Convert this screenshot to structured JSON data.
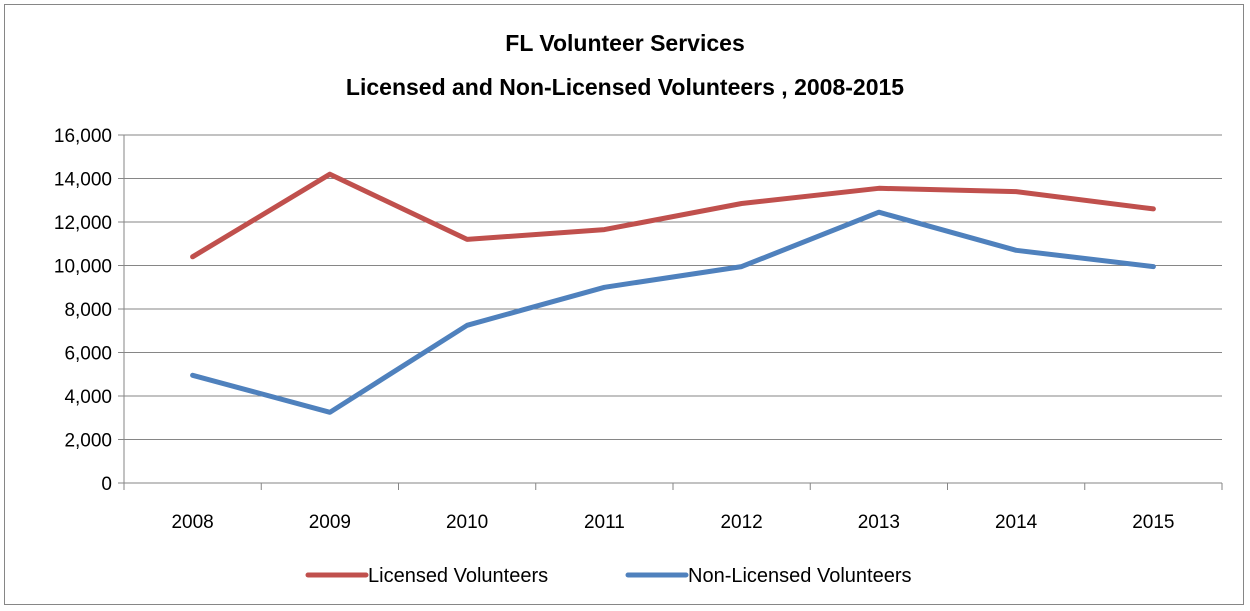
{
  "chart_data": {
    "type": "line",
    "title": "FL Volunteer Services",
    "subtitle": "Licensed and Non-Licensed Volunteers , 2008-2015",
    "categories": [
      "2008",
      "2009",
      "2010",
      "2011",
      "2012",
      "2013",
      "2014",
      "2015"
    ],
    "ylim": [
      0,
      16000
    ],
    "yticks": [
      0,
      2000,
      4000,
      6000,
      8000,
      10000,
      12000,
      14000,
      16000
    ],
    "ytick_labels": [
      "0",
      "2,000",
      "4,000",
      "6,000",
      "8,000",
      "10,000",
      "12,000",
      "14,000",
      "16,000"
    ],
    "grid": true,
    "legend_position": "bottom",
    "series": [
      {
        "name": "Licensed Volunteers",
        "color": "#C0504D",
        "values": [
          10400,
          14200,
          11200,
          11650,
          12850,
          13550,
          13400,
          12600
        ]
      },
      {
        "name": "Non-Licensed Volunteers",
        "color": "#4F81BD",
        "values": [
          4950,
          3250,
          7250,
          9000,
          9950,
          12450,
          10700,
          9950
        ]
      }
    ]
  }
}
